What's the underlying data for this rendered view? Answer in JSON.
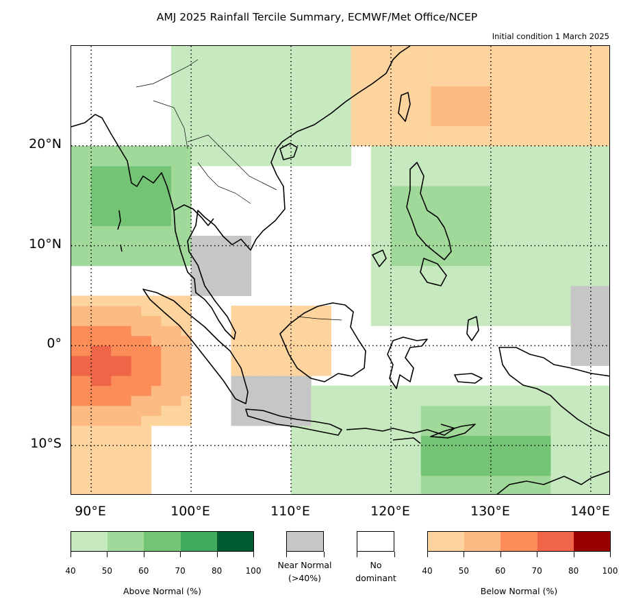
{
  "title": "AMJ 2025 Rainfall Tercile Summary, ECMWF/Met Office/NCEP",
  "subtitle": "Initial condition 1 March 2025",
  "map": {
    "lon_range": [
      88,
      142
    ],
    "lat_range": [
      -15,
      30
    ],
    "lat_labels": [
      "20°N",
      "10°N",
      "0°",
      "10°S"
    ],
    "lon_labels": [
      "90°E",
      "100°E",
      "110°E",
      "120°E",
      "130°E",
      "140°E"
    ],
    "gridlines": "dotted"
  },
  "colors": {
    "above": [
      "#c7e9c0",
      "#a1d99b",
      "#74c476",
      "#41ab5d",
      "#005a32"
    ],
    "below": [
      "#fdd49e",
      "#fdbb84",
      "#fc8d59",
      "#ef6548",
      "#990000"
    ],
    "near_normal": "#c6c6c6",
    "no_dominant": "#ffffff",
    "land_outline": "#000000"
  },
  "legend": {
    "above": {
      "caption": "Above Normal (%)",
      "ticks": [
        "40",
        "50",
        "60",
        "70",
        "80",
        "100"
      ]
    },
    "near_normal": {
      "caption_line1": "Near Normal",
      "caption_line2": "(>40%)"
    },
    "no_dominant": {
      "caption_line1": "No",
      "caption_line2": "dominant"
    },
    "below": {
      "caption": "Below Normal (%)",
      "ticks": [
        "40",
        "50",
        "60",
        "70",
        "80",
        "100"
      ]
    }
  }
}
